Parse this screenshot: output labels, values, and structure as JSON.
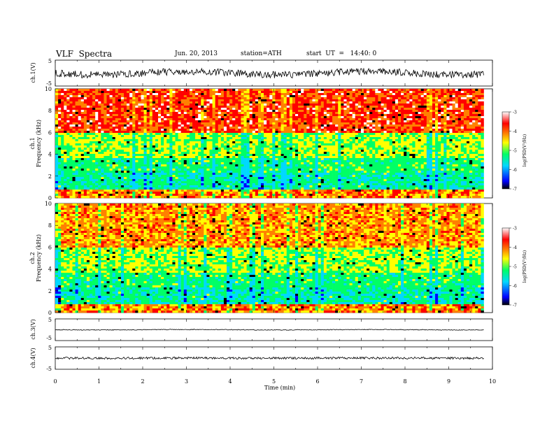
{
  "header": {
    "title": "VLF  Spectra",
    "date": "Jun. 20, 2013",
    "station": "station=ATH",
    "start": "start  UT  =   14:40: 0"
  },
  "chart_data": [
    {
      "panel": "ch1-waveform",
      "type": "line",
      "ylabel": "ch.1(V)",
      "ylim": [
        -5,
        5
      ],
      "yticks": [
        "5",
        "-5"
      ],
      "xlim": [
        0,
        10
      ]
    },
    {
      "panel": "ch1-spectrogram",
      "type": "heatmap",
      "ylabel": "ch.1\nFrequency  (kHz)",
      "ylabel_top": "ch.1",
      "ylabel_main": "Frequency  (kHz)",
      "ylim": [
        0,
        10
      ],
      "yticks": [
        "0",
        "2",
        "4",
        "6",
        "8",
        "10"
      ],
      "xlim": [
        0,
        10
      ],
      "colorbar": {
        "label": "log(PSD(V²/Hz)",
        "range": [
          -7,
          -3
        ],
        "ticks": [
          "-3",
          "-4",
          "-5",
          "-6",
          "-7"
        ]
      }
    },
    {
      "panel": "ch2-spectrogram",
      "type": "heatmap",
      "ylabel_top": "ch.2",
      "ylabel_main": "Frequency  (kHz)",
      "ylim": [
        0,
        10
      ],
      "yticks": [
        "0",
        "2",
        "4",
        "6",
        "8",
        "10"
      ],
      "xlim": [
        0,
        10
      ],
      "colorbar": {
        "label": "log(PSD(V²/Hz)",
        "range": [
          -7,
          -3
        ],
        "ticks": [
          "-3",
          "-4",
          "-5",
          "-6",
          "-7"
        ]
      }
    },
    {
      "panel": "ch3-waveform",
      "type": "line",
      "ylabel": "ch.3(V)",
      "ylim": [
        -5,
        5
      ],
      "yticks": [
        "5",
        "-5"
      ]
    },
    {
      "panel": "ch4-waveform",
      "type": "line",
      "ylabel": "ch.4(V)",
      "ylim": [
        -5,
        5
      ],
      "yticks": [
        "5",
        "-5"
      ],
      "xlabel": "Time  (min)",
      "xlim": [
        0,
        10
      ],
      "xticks": [
        "0",
        "1",
        "2",
        "3",
        "4",
        "5",
        "6",
        "7",
        "8",
        "9",
        "10"
      ]
    }
  ],
  "colors": {
    "spectrum": [
      "#000000",
      "#0000ff",
      "#00d8ff",
      "#00ff66",
      "#ffff00",
      "#ff8000",
      "#ff0000",
      "#ffffff"
    ]
  }
}
